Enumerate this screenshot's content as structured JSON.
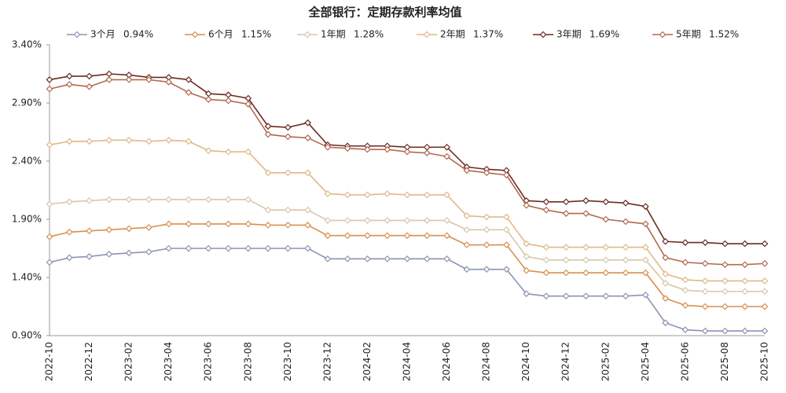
{
  "chart_data": {
    "type": "line",
    "title": "全部银行：定期存款利率均值",
    "categories": [
      "2022-10",
      null,
      "2022-12",
      null,
      "2023-02",
      null,
      "2023-04",
      null,
      "2023-06",
      null,
      "2023-08",
      null,
      "2023-10",
      null,
      "2023-12",
      null,
      "2024-02",
      null,
      "2024-04",
      null,
      "2024-06",
      null,
      "2024-08",
      null,
      "2024-10",
      null,
      "2024-12",
      null,
      "2025-02",
      null,
      "2025-04",
      null,
      "2025-06",
      null,
      "2025-08",
      null,
      "2025-10"
    ],
    "ylim": [
      0.9,
      3.4
    ],
    "yticks": [
      {
        "value": 0.9,
        "label": "0.90%"
      },
      {
        "value": 1.4,
        "label": "1.40%"
      },
      {
        "value": 1.9,
        "label": "1.90%"
      },
      {
        "value": 2.4,
        "label": "2.40%"
      },
      {
        "value": 2.9,
        "label": "2.90%"
      },
      {
        "value": 3.4,
        "label": "3.40%"
      }
    ],
    "grid": false,
    "legend": "top",
    "series": [
      {
        "name": "3个月",
        "legend_label": "0.94%",
        "color": "#8b93b5",
        "values": [
          1.53,
          1.57,
          1.58,
          1.6,
          1.61,
          1.62,
          1.65,
          1.65,
          1.65,
          1.65,
          1.65,
          1.65,
          1.65,
          1.65,
          1.56,
          1.56,
          1.56,
          1.56,
          1.56,
          1.56,
          1.56,
          1.47,
          1.47,
          1.47,
          1.26,
          1.24,
          1.24,
          1.24,
          1.24,
          1.24,
          1.25,
          1.01,
          0.95,
          0.94,
          0.94,
          0.94,
          0.94
        ]
      },
      {
        "name": "6个月",
        "legend_label": "1.15%",
        "color": "#d98f4e",
        "values": [
          1.75,
          1.79,
          1.8,
          1.81,
          1.82,
          1.83,
          1.86,
          1.86,
          1.86,
          1.86,
          1.86,
          1.85,
          1.85,
          1.85,
          1.76,
          1.76,
          1.76,
          1.76,
          1.76,
          1.76,
          1.76,
          1.68,
          1.68,
          1.68,
          1.46,
          1.44,
          1.44,
          1.44,
          1.44,
          1.44,
          1.44,
          1.22,
          1.16,
          1.15,
          1.15,
          1.15,
          1.15
        ]
      },
      {
        "name": "1年期",
        "legend_label": "1.28%",
        "color": "#d8c7a8",
        "values": [
          2.03,
          2.05,
          2.06,
          2.07,
          2.07,
          2.07,
          2.07,
          2.07,
          2.07,
          2.07,
          2.07,
          1.98,
          1.98,
          1.98,
          1.89,
          1.89,
          1.89,
          1.89,
          1.89,
          1.89,
          1.89,
          1.81,
          1.81,
          1.81,
          1.58,
          1.55,
          1.55,
          1.55,
          1.55,
          1.55,
          1.55,
          1.35,
          1.29,
          1.28,
          1.28,
          1.28,
          1.28
        ]
      },
      {
        "name": "2年期",
        "legend_label": "1.37%",
        "color": "#e0b987",
        "values": [
          2.54,
          2.57,
          2.57,
          2.58,
          2.58,
          2.57,
          2.58,
          2.57,
          2.49,
          2.48,
          2.48,
          2.3,
          2.3,
          2.3,
          2.12,
          2.11,
          2.11,
          2.12,
          2.11,
          2.11,
          2.11,
          1.93,
          1.92,
          1.92,
          1.69,
          1.66,
          1.66,
          1.66,
          1.66,
          1.66,
          1.66,
          1.43,
          1.38,
          1.37,
          1.37,
          1.37,
          1.37
        ]
      },
      {
        "name": "3年期",
        "legend_label": "1.69%",
        "color": "#6b2a24",
        "values": [
          3.1,
          3.13,
          3.13,
          3.15,
          3.14,
          3.12,
          3.12,
          3.1,
          2.98,
          2.97,
          2.94,
          2.7,
          2.69,
          2.73,
          2.54,
          2.53,
          2.53,
          2.53,
          2.52,
          2.52,
          2.52,
          2.35,
          2.33,
          2.32,
          2.06,
          2.05,
          2.05,
          2.06,
          2.05,
          2.04,
          2.01,
          1.71,
          1.7,
          1.7,
          1.69,
          1.69,
          1.69
        ]
      },
      {
        "name": "5年期",
        "legend_label": "1.52%",
        "color": "#b06a50",
        "values": [
          3.02,
          3.06,
          3.04,
          3.1,
          3.1,
          3.1,
          3.08,
          2.99,
          2.93,
          2.92,
          2.89,
          2.63,
          2.61,
          2.6,
          2.52,
          2.51,
          2.5,
          2.5,
          2.48,
          2.47,
          2.44,
          2.32,
          2.3,
          2.28,
          2.02,
          1.98,
          1.95,
          1.95,
          1.9,
          1.88,
          1.86,
          1.57,
          1.53,
          1.52,
          1.51,
          1.51,
          1.52
        ]
      }
    ]
  }
}
